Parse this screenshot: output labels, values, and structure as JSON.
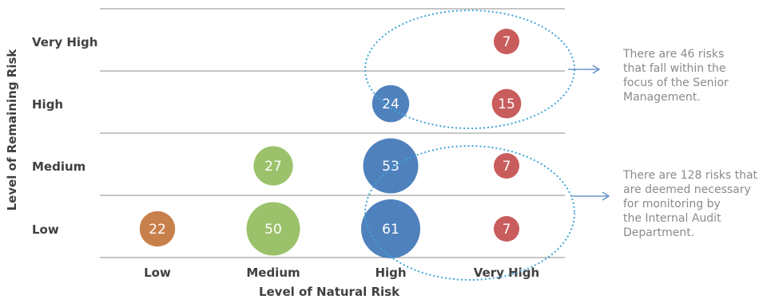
{
  "chart_data": {
    "type": "bubble",
    "xlabel": "Level of Natural Risk",
    "ylabel": "Level of Remaining Risk",
    "x_categories": [
      "Low",
      "Medium",
      "High",
      "Very High"
    ],
    "y_categories": [
      "Low",
      "Medium",
      "High",
      "Very High"
    ],
    "points": [
      {
        "x": "Low",
        "y": "Low",
        "value": 22,
        "color": "#c8804a"
      },
      {
        "x": "Medium",
        "y": "Low",
        "value": 50,
        "color": "#9bc26b"
      },
      {
        "x": "Medium",
        "y": "Medium",
        "value": 27,
        "color": "#9bc26b"
      },
      {
        "x": "High",
        "y": "Low",
        "value": 61,
        "color": "#4f81bd"
      },
      {
        "x": "High",
        "y": "Medium",
        "value": 53,
        "color": "#4f81bd"
      },
      {
        "x": "High",
        "y": "High",
        "value": 24,
        "color": "#4f81bd"
      },
      {
        "x": "Very High",
        "y": "Low",
        "value": 7,
        "color": "#c95c5c"
      },
      {
        "x": "Very High",
        "y": "Medium",
        "value": 7,
        "color": "#c95c5c"
      },
      {
        "x": "Very High",
        "y": "High",
        "value": 15,
        "color": "#c95c5c"
      },
      {
        "x": "Very High",
        "y": "Very High",
        "value": 7,
        "color": "#c95c5c"
      }
    ],
    "annotations": [
      {
        "text": "There are 46 risks\nthat fall within the\nfocus of the Senior\nManagement."
      },
      {
        "text": "There are 128 risks that\nare deemed necessary\nfor monitoring by\nthe Internal Audit\nDepartment."
      }
    ],
    "grid": true,
    "colors": {
      "gridline": "#8c8c8c",
      "ellipse": "#3ea6d8",
      "arrow": "#4f81bd"
    }
  }
}
